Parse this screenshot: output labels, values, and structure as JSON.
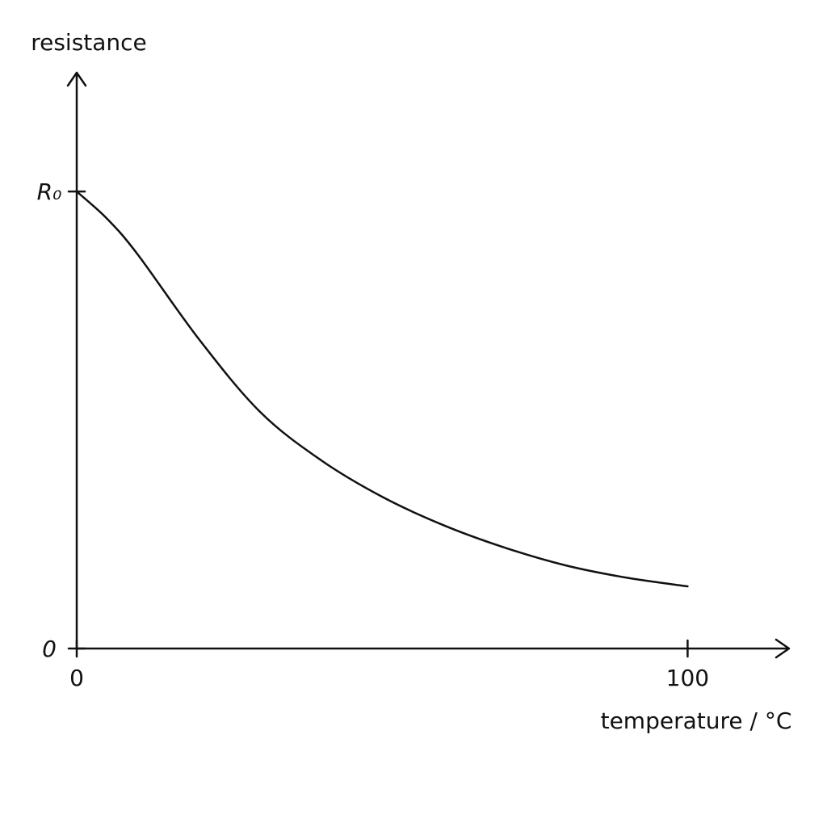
{
  "chart_data": {
    "type": "line",
    "xlabel": "temperature / °C",
    "ylabel": "resistance",
    "x": [
      0,
      5,
      10,
      20,
      30,
      40,
      50,
      60,
      70,
      80,
      90,
      100
    ],
    "series": [
      {
        "name": "resistance",
        "color": "#111111",
        "values": [
          1.0,
          0.94,
          0.862,
          0.677,
          0.518,
          0.412,
          0.332,
          0.27,
          0.221,
          0.182,
          0.155,
          0.136
        ]
      }
    ],
    "xlim": [
      0,
      117
    ],
    "ylim": [
      0,
      1.26
    ],
    "xticks": [
      0,
      100
    ],
    "yticks": [
      0,
      {
        "value": 1,
        "label": "R₀"
      }
    ],
    "grid": false
  }
}
